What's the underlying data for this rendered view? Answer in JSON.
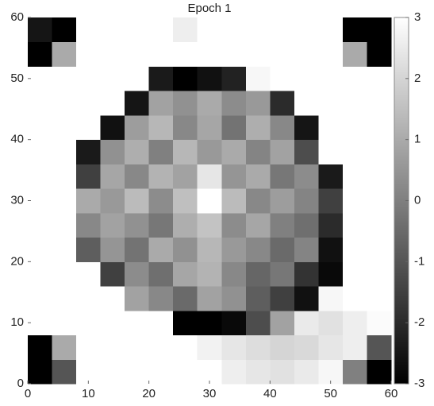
{
  "chart_data": {
    "type": "heatmap",
    "title": "Epoch 1",
    "xlim": [
      0,
      60
    ],
    "ylim": [
      0,
      60
    ],
    "xticks": [
      0,
      10,
      20,
      30,
      40,
      50,
      60
    ],
    "yticks": [
      0,
      10,
      20,
      30,
      40,
      50,
      60
    ],
    "clim": [
      -3,
      3
    ],
    "cticks": [
      -3,
      -2,
      -1,
      0,
      1,
      2,
      3
    ],
    "colormap": [
      "#000000",
      "#ffffff"
    ],
    "z": [
      [
        -3,
        -1,
        3,
        3,
        3,
        3,
        3,
        3,
        2.6,
        2.4,
        2.3,
        2.5,
        2.8,
        0,
        -3
      ],
      [
        -3,
        1,
        3,
        3,
        3,
        3,
        3,
        2.7,
        2.4,
        2.2,
        2.0,
        2.1,
        2.4,
        2.6,
        -1
      ],
      [
        3,
        3,
        3,
        3,
        3,
        3,
        -3,
        -3,
        -2.8,
        -1.2,
        0.8,
        2.5,
        2.3,
        2.6,
        2.9
      ],
      [
        3,
        3,
        3,
        3,
        0.8,
        0.2,
        -0.5,
        0.8,
        0.4,
        -0.8,
        -1.5,
        -2.6,
        2.8,
        3,
        3
      ],
      [
        3,
        3,
        3,
        -1.5,
        0.3,
        -0.4,
        0.9,
        1.2,
        0.2,
        -0.6,
        -0.2,
        -1.8,
        -2.8,
        3,
        3
      ],
      [
        3,
        3,
        -0.8,
        0.5,
        -0.3,
        1.0,
        0.4,
        1.3,
        0.6,
        0.2,
        -0.5,
        0.1,
        -2.6,
        3,
        3
      ],
      [
        3,
        3,
        0.2,
        0.8,
        0.4,
        -0.2,
        1.1,
        1.6,
        0.3,
        0.9,
        0.0,
        -0.4,
        -2.0,
        3,
        3
      ],
      [
        3,
        3,
        1.0,
        0.6,
        1.4,
        0.3,
        1.5,
        3,
        1.4,
        0.2,
        0.7,
        0.1,
        -1.5,
        3,
        3
      ],
      [
        3,
        3,
        -1.5,
        0.9,
        0.2,
        1.2,
        0.8,
        2.4,
        0.5,
        1.0,
        -0.2,
        0.3,
        -2.4,
        3,
        3
      ],
      [
        3,
        3,
        -2.4,
        0.4,
        1.1,
        0.0,
        1.3,
        0.6,
        1.0,
        0.1,
        0.8,
        -1.2,
        3,
        3,
        3
      ],
      [
        3,
        3,
        3,
        -2.6,
        0.7,
        1.3,
        0.2,
        0.9,
        -0.3,
        1.1,
        0.2,
        -2.5,
        3,
        3,
        3
      ],
      [
        3,
        3,
        3,
        3,
        -2.5,
        0.8,
        0.4,
        1.0,
        0.3,
        0.6,
        -2.0,
        3,
        3,
        3,
        3
      ],
      [
        3,
        3,
        3,
        3,
        3,
        -2.4,
        -3,
        -2.6,
        -2.2,
        2.8,
        3,
        3,
        3,
        3,
        3
      ],
      [
        -3,
        1,
        3,
        3,
        3,
        3,
        3,
        3,
        3,
        3,
        3,
        3,
        3,
        1,
        -3
      ],
      [
        -2.5,
        -3,
        3,
        3,
        3,
        3,
        2.6,
        3,
        3,
        3,
        3,
        3,
        3,
        -3,
        -3
      ]
    ]
  }
}
